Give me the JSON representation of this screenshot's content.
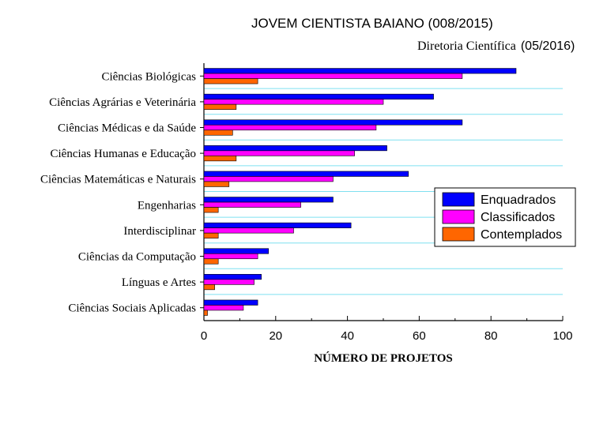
{
  "header": {
    "title": "JOVEM CIENTISTA BAIANO (008/2015)",
    "subtitle": "Diretoria Científica",
    "date": "(05/2016)"
  },
  "chart_data": {
    "type": "bar",
    "orientation": "horizontal",
    "title": "JOVEM CIENTISTA BAIANO (008/2015)",
    "xlabel": "NÚMERO DE PROJETOS",
    "ylabel": "",
    "xlim": [
      0,
      100
    ],
    "xticks": [
      0,
      20,
      40,
      60,
      80,
      100
    ],
    "grid": "horizontal lines between categories",
    "legend_position": "right",
    "categories": [
      "Ciências Biológicas",
      "Ciências Agrárias e Veterinária",
      "Ciências Médicas e da Saúde",
      "Ciências Humanas e Educação",
      "Ciências Matemáticas e Naturais",
      "Engenharias",
      "Interdisciplinar",
      "Ciências da Computação",
      "Línguas e Artes",
      "Ciências Sociais Aplicadas"
    ],
    "series": [
      {
        "name": "Enquadrados",
        "color": "#0000ff",
        "values": [
          87,
          64,
          72,
          51,
          57,
          36,
          41,
          18,
          16,
          15
        ]
      },
      {
        "name": "Classificados",
        "color": "#ff00ff",
        "values": [
          72,
          50,
          48,
          42,
          36,
          27,
          25,
          15,
          14,
          11
        ]
      },
      {
        "name": "Contemplados",
        "color": "#ff6600",
        "values": [
          15,
          9,
          8,
          9,
          7,
          4,
          4,
          4,
          3,
          1
        ]
      }
    ]
  }
}
